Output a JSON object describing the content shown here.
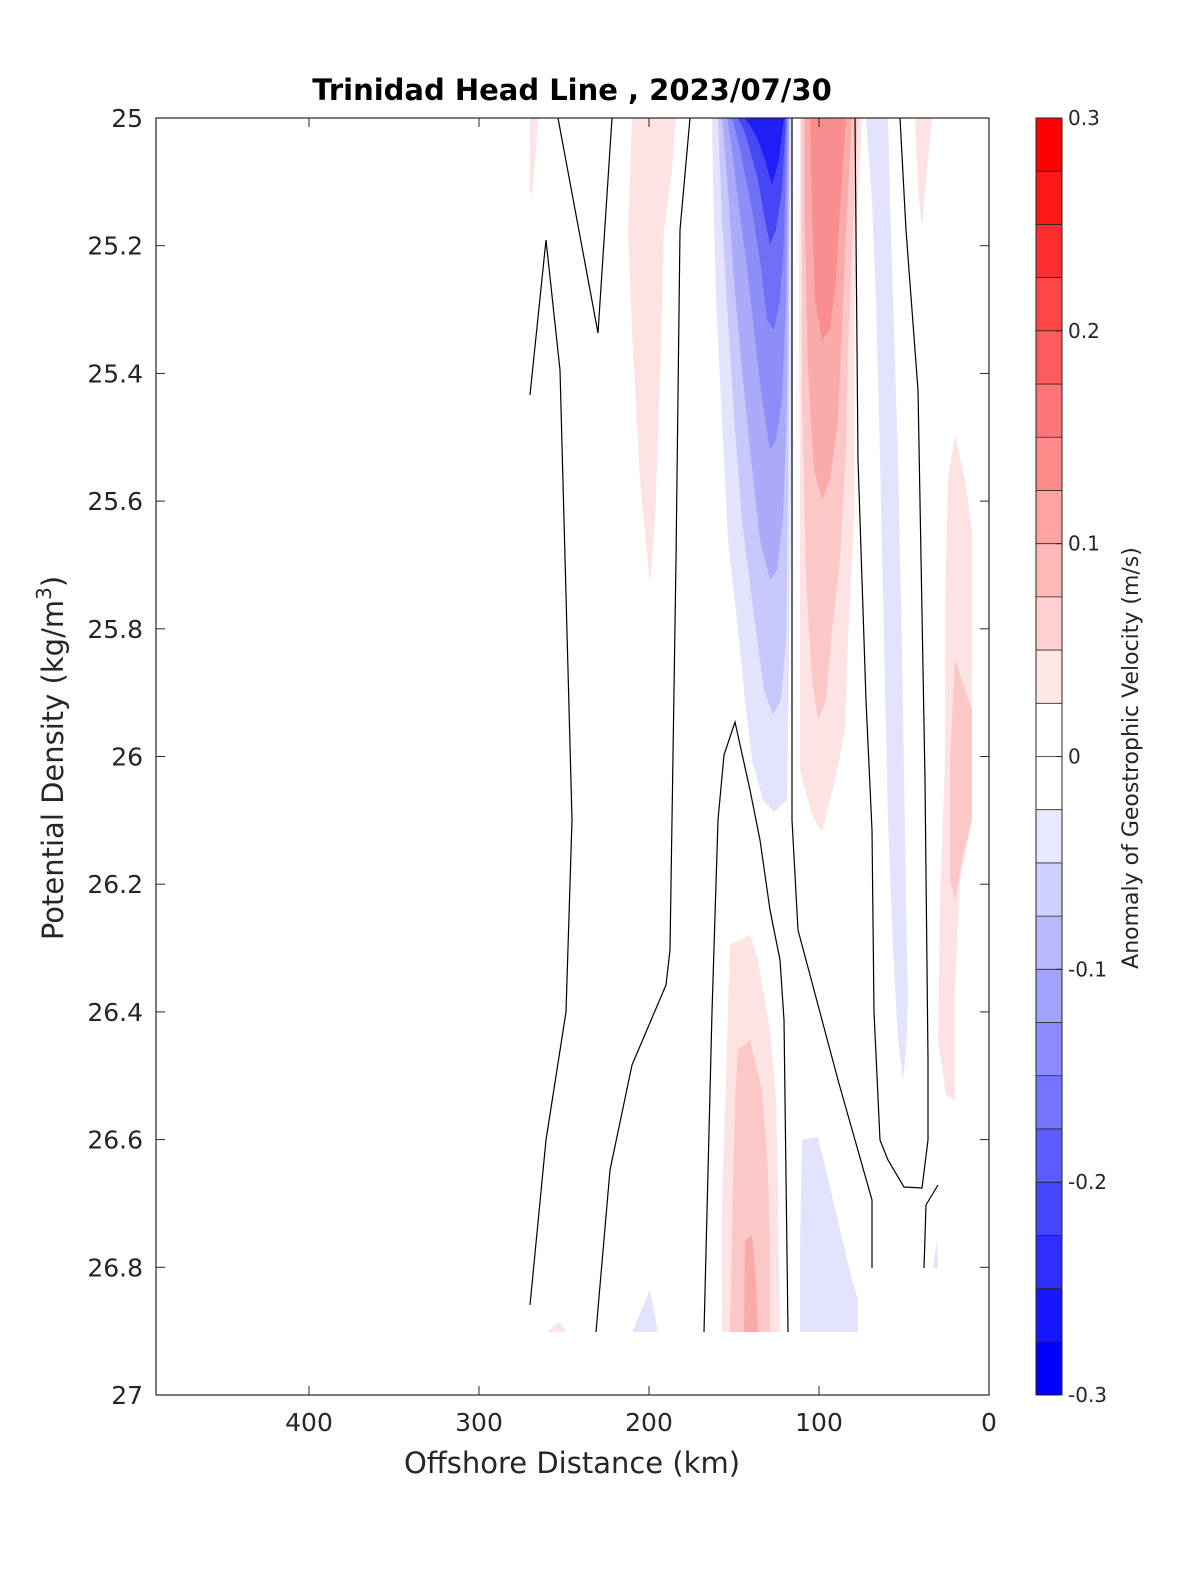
{
  "chart_data": {
    "type": "heatmap",
    "title": "Trinidad Head Line , 2023/07/30",
    "xlabel": "Offshore Distance (km)",
    "ylabel": "Potential Density (kg/m",
    "ylabel_sup": "3",
    "ylabel_end": ")",
    "xlim": [
      490,
      0
    ],
    "ylim": [
      25,
      27
    ],
    "x_reversed": true,
    "y_reversed": true,
    "x_ticks": [
      400,
      300,
      200,
      100,
      0
    ],
    "y_ticks": [
      25,
      25.2,
      25.4,
      25.6,
      25.8,
      26,
      26.2,
      26.4,
      26.6,
      26.8,
      27
    ],
    "x_tick_labels": [
      "400",
      "300",
      "200",
      "100",
      "0"
    ],
    "y_tick_labels": [
      "25",
      "25.2",
      "25.4",
      "25.6",
      "25.8",
      "26",
      "26.2",
      "26.4",
      "26.6",
      "26.8",
      "27"
    ],
    "colorbar": {
      "label": "Anomaly of Geostrophic Velocity (m/s)",
      "range": [
        -0.3,
        0.3
      ],
      "levels": 24,
      "tick_values": [
        0.3,
        0.2,
        0.1,
        0,
        -0.1,
        -0.2,
        -0.3
      ],
      "tick_labels": [
        "0.3",
        "0.2",
        "0.1",
        "0",
        "-0.1",
        "-0.2",
        "-0.3"
      ],
      "negative_color": "#0000ff",
      "positive_color": "#ff0000"
    },
    "anomaly_features": [
      {
        "name": "blue-core",
        "value": -0.28,
        "x": 133,
        "y": 25.05
      },
      {
        "name": "blue-band",
        "value": -0.2,
        "x": 133,
        "y": 25.45
      },
      {
        "name": "blue-tail",
        "value": -0.06,
        "x": 140,
        "y": 25.95
      },
      {
        "name": "red-core",
        "value": 0.15,
        "x": 100,
        "y": 25.2
      },
      {
        "name": "red-tail",
        "value": 0.05,
        "x": 100,
        "y": 26.0
      },
      {
        "name": "pink-200",
        "value": 0.04,
        "x": 200,
        "y": 25.3
      },
      {
        "name": "pink-lower",
        "value": 0.06,
        "x": 140,
        "y": 26.7
      },
      {
        "name": "pink-right",
        "value": 0.05,
        "x": 20,
        "y": 26.0
      }
    ]
  }
}
